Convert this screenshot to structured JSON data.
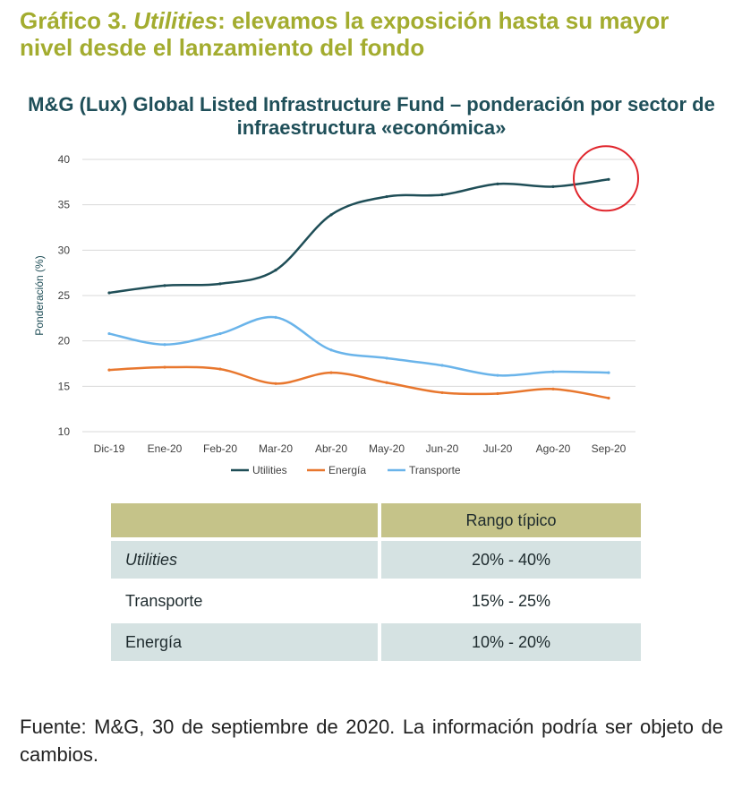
{
  "heading": {
    "prefix": "Gráfico 3. ",
    "italic": "Utilities",
    "rest": ": elevamos la exposición hasta su mayor nivel desde el lanzamiento del fondo"
  },
  "chart_data": {
    "type": "line",
    "title": "M&G (Lux) Global Listed Infrastructure Fund – ponderación por sector de infraestructura «económica»",
    "xlabel": "",
    "ylabel": "Ponderación (%)",
    "categories": [
      "Dic-19",
      "Ene-20",
      "Feb-20",
      "Mar-20",
      "Abr-20",
      "May-20",
      "Jun-20",
      "Jul-20",
      "Ago-20",
      "Sep-20"
    ],
    "ylim": [
      10,
      40
    ],
    "yticks": [
      "10",
      "15",
      "20",
      "25",
      "30",
      "35",
      "40"
    ],
    "grid": true,
    "legend_position": "bottom",
    "series": [
      {
        "name": "Utilities",
        "color": "#1f4e57",
        "values": [
          25.3,
          26.1,
          26.3,
          27.8,
          33.9,
          35.9,
          36.1,
          37.3,
          37.0,
          37.8
        ]
      },
      {
        "name": "Energía",
        "color": "#e8772e",
        "values": [
          16.8,
          17.1,
          16.9,
          15.3,
          16.5,
          15.4,
          14.3,
          14.2,
          14.7,
          13.7
        ]
      },
      {
        "name": "Transporte",
        "color": "#6ab4ea",
        "values": [
          20.8,
          19.6,
          20.8,
          22.6,
          19.0,
          18.1,
          17.3,
          16.2,
          16.6,
          16.5
        ]
      }
    ],
    "annotation": {
      "type": "circle",
      "category": "Sep-20",
      "value": 37.8,
      "color": "#e0262d"
    }
  },
  "range_table": {
    "header": "Rango típico",
    "rows": [
      {
        "sector": "Utilities",
        "range": "20% - 40%"
      },
      {
        "sector": "Transporte",
        "range": "15% - 25%"
      },
      {
        "sector": "Energía",
        "range": "10% - 20%"
      }
    ]
  },
  "source": "Fuente: M&G, 30 de septiembre de 2020. La información podría ser objeto de cambios."
}
